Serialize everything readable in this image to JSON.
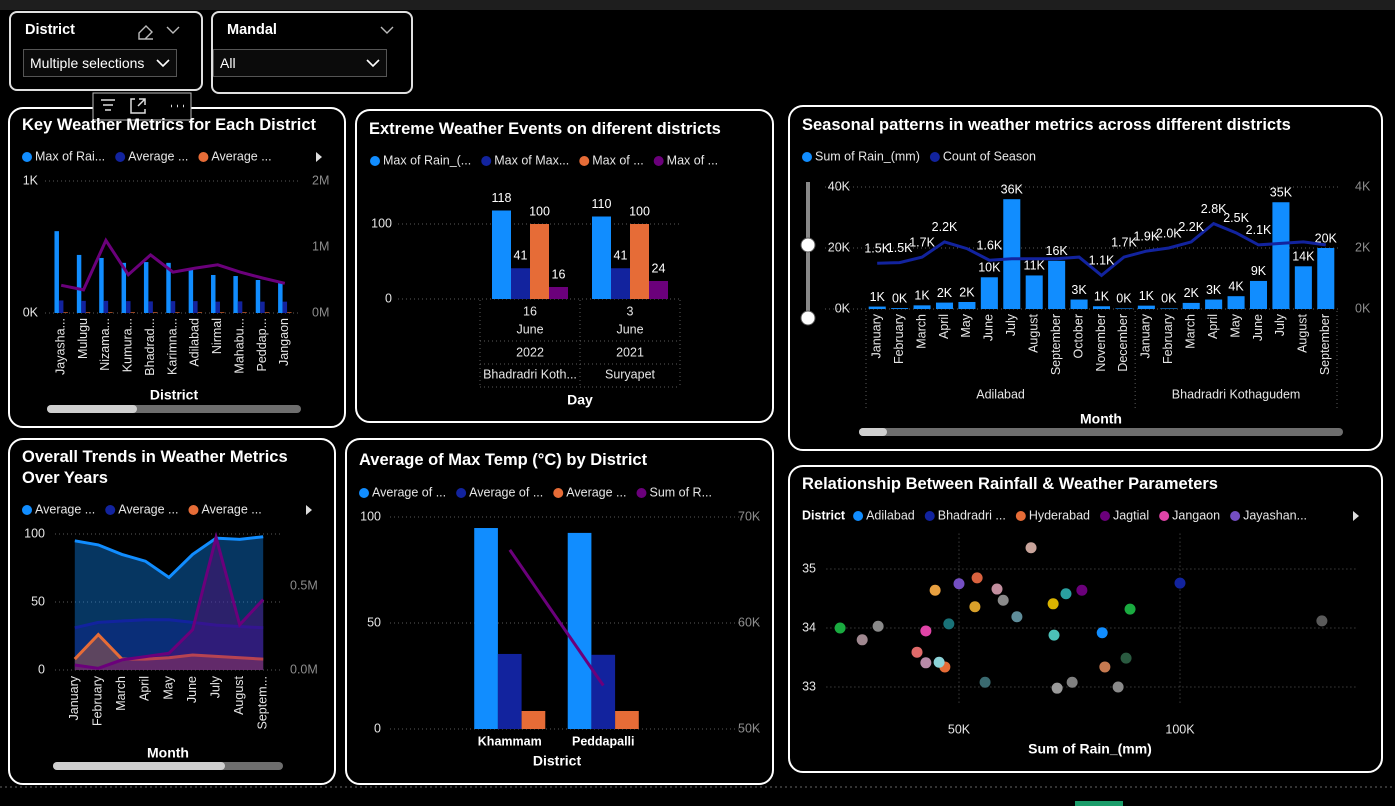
{
  "slicers": [
    {
      "title": "District",
      "selection": "Multiple selections"
    },
    {
      "title": "Mandal",
      "selection": "All"
    }
  ],
  "chart_data": [
    {
      "type": "combo",
      "title": "Key Weather Metrics for Each District",
      "x_label": "District",
      "categories": [
        "Jayasha...",
        "Mulugu",
        "Nizama...",
        "Kumura...",
        "Bhadrad...",
        "Karimna...",
        "Adilabad",
        "Nirmal",
        "Mahabu...",
        "Peddap...",
        "Jangaon"
      ],
      "series": [
        {
          "name": "Max of Rai...",
          "color": "#118dff",
          "values": [
            620,
            440,
            417,
            380,
            386,
            380,
            326,
            288,
            280,
            250,
            235
          ]
        },
        {
          "name": "Average ...",
          "color": "#12239e",
          "values": [
            95,
            92,
            92,
            90,
            88,
            90,
            90,
            86,
            88,
            86,
            86
          ]
        },
        {
          "name": "Average ...",
          "color": "#e66c37",
          "values": [
            5,
            5,
            5,
            5,
            5,
            5,
            5,
            5,
            5,
            5,
            5
          ]
        },
        {
          "color": "#6b007b",
          "axis": "y2",
          "values": [
            420000,
            350000,
            1100000,
            580000,
            880000,
            620000,
            680000,
            730000,
            620000,
            530000,
            450000
          ]
        }
      ],
      "ylim": [
        0,
        1000
      ],
      "yticks": [
        {
          "value": 0,
          "label": "0K"
        },
        {
          "value": 1000,
          "label": "1K"
        }
      ],
      "y2lim": [
        0,
        2000000
      ],
      "y2ticks": [
        {
          "value": 0,
          "label": "0M"
        },
        {
          "value": 1000000,
          "label": "1M"
        },
        {
          "value": 2000000,
          "label": "2M"
        }
      ],
      "grid": true
    },
    {
      "type": "bar",
      "title": "Extreme Weather Events on diferent districts",
      "x_label": "Day",
      "categories": [
        "16",
        "3"
      ],
      "months": [
        "June",
        "June"
      ],
      "years": [
        "2022",
        "2021"
      ],
      "districts": [
        "Bhadradri Koth...",
        "Suryapet"
      ],
      "series": [
        {
          "name": "Max of Rain_(...",
          "color": "#118dff",
          "values": [
            118,
            110
          ]
        },
        {
          "name": "Max of Max...",
          "color": "#12239e",
          "values": [
            41,
            41
          ]
        },
        {
          "name": "Max of ...",
          "color": "#e66c37",
          "values": [
            100,
            100
          ]
        },
        {
          "name": "Max of ...",
          "color": "#6b007b",
          "values": [
            16,
            24
          ]
        }
      ],
      "ylim": [
        0,
        140
      ],
      "yticks": [
        0,
        100
      ],
      "grid": true,
      "data_labels": true
    },
    {
      "type": "combo",
      "title": "Seasonal patterns in weather metrics across different districts",
      "x_label": "Month",
      "groups": [
        {
          "name": "Adilabad",
          "categories": [
            "January",
            "February",
            "March",
            "April",
            "May",
            "June",
            "July",
            "August",
            "September",
            "October",
            "November",
            "December"
          ]
        },
        {
          "name": "Bhadradri Kothagudem",
          "categories": [
            "January",
            "February",
            "March",
            "April",
            "May",
            "June",
            "July",
            "August",
            "September"
          ]
        }
      ],
      "series": [
        {
          "name": "Sum of Rain_(mm)",
          "color": "#118dff",
          "values": [
            800,
            300,
            1200,
            2100,
            2300,
            10400,
            36000,
            11000,
            15800,
            3100,
            900,
            200,
            1100,
            200,
            2000,
            3100,
            4200,
            9200,
            35000,
            14000,
            20000
          ],
          "value_labels": [
            "1K",
            "0K",
            "1K",
            "2K",
            "2K",
            "10K",
            "36K",
            "11K",
            "16K",
            "3K",
            "1K",
            "0K",
            "1K",
            "0K",
            "2K",
            "3K",
            "4K",
            "9K",
            "35K",
            "14K",
            "20K"
          ]
        },
        {
          "name": "Count of Season",
          "color": "#12239e",
          "axis": "y2",
          "values": [
            1500,
            1520,
            1700,
            2200,
            1980,
            1600,
            1650,
            1650,
            1650,
            1700,
            1100,
            1700,
            1900,
            2000,
            2200,
            2800,
            2500,
            2100,
            2150,
            2200,
            2100
          ],
          "value_labels": [
            "1.5K",
            "1.5K",
            "1.7K",
            "2.2K",
            null,
            "1.6K",
            null,
            null,
            null,
            null,
            "1.1K",
            "1.7K",
            "1.9K",
            "2.0K",
            "2.2K",
            "2.8K",
            "2.5K",
            "2.1K",
            null,
            null,
            null
          ]
        }
      ],
      "ylim": [
        0,
        40000
      ],
      "yticks": [
        {
          "value": 0,
          "label": "0K"
        },
        {
          "value": 20000,
          "label": "20K"
        },
        {
          "value": 40000,
          "label": "40K"
        }
      ],
      "y2lim": [
        0,
        4000
      ],
      "y2ticks": [
        {
          "value": 0,
          "label": "0K"
        },
        {
          "value": 2000,
          "label": "2K"
        },
        {
          "value": 4000,
          "label": "4K"
        }
      ],
      "grid": true
    },
    {
      "type": "area",
      "title": "Overall Trends in Weather Metrics Over Years",
      "x_label": "Month",
      "categories": [
        "January",
        "February",
        "March",
        "April",
        "May",
        "June",
        "July",
        "August",
        "Septem..."
      ],
      "series": [
        {
          "name": "Average ...",
          "color": "#118dff",
          "values": [
            95,
            92,
            85,
            80,
            68,
            85,
            97,
            96,
            98
          ]
        },
        {
          "name": "Average ...",
          "color": "#12239e",
          "values": [
            31,
            35,
            36,
            37,
            37,
            35,
            33,
            32,
            31
          ]
        },
        {
          "name": "Average ...",
          "color": "#e66c37",
          "values": [
            8,
            26,
            8,
            8,
            9,
            11,
            10,
            9,
            8
          ]
        },
        {
          "color": "#6b007b",
          "axis": "y2",
          "values": [
            30000,
            10000,
            60000,
            80000,
            100000,
            240000,
            790000,
            270000,
            420000
          ]
        }
      ],
      "ylim": [
        0,
        100
      ],
      "yticks": [
        0,
        50,
        100
      ],
      "y2lim": [
        0,
        810000
      ],
      "y2ticks": [
        {
          "value": 0,
          "label": "0.0M"
        },
        {
          "value": 500000,
          "label": "0.5M"
        }
      ],
      "grid": true
    },
    {
      "type": "combo",
      "title": "Average of Max Temp (°C) by District",
      "x_label": "District",
      "categories": [
        "Khammam",
        "Peddapalli"
      ],
      "series": [
        {
          "name": "Average of ...",
          "color": "#118dff",
          "values": [
            94.8,
            92.5
          ]
        },
        {
          "name": "Average of ...",
          "color": "#12239e",
          "values": [
            35.4,
            35
          ]
        },
        {
          "name": "Average ...",
          "color": "#e66c37",
          "values": [
            8.5,
            8.5
          ]
        },
        {
          "name": "Sum of R...",
          "color": "#6b007b",
          "axis": "y2",
          "values": [
            66900,
            54100
          ]
        }
      ],
      "ylim": [
        0,
        100
      ],
      "yticks": [
        0,
        50,
        100
      ],
      "y2lim": [
        50000,
        70000
      ],
      "y2ticks": [
        {
          "value": 50000,
          "label": "50K"
        },
        {
          "value": 60000,
          "label": "60K"
        },
        {
          "value": 70000,
          "label": "70K"
        }
      ],
      "grid": true
    },
    {
      "type": "scatter",
      "title": "Relationship Between Rainfall & Weather Parameters",
      "x_label": "Sum of Rain_(mm)",
      "legend_title": "District",
      "series": [
        {
          "name": "Adilabad",
          "color": "#118dff",
          "x": [
            82400
          ],
          "y": [
            33.92
          ]
        },
        {
          "name": "Bhadradri ...",
          "color": "#12239e",
          "x": [
            100000
          ],
          "y": [
            34.76
          ]
        },
        {
          "name": "Hyderabad",
          "color": "#e66c37",
          "x": [
            46800
          ],
          "y": [
            33.34
          ]
        },
        {
          "name": "Jagtial",
          "color": "#6b007b",
          "x": [
            77800
          ],
          "y": [
            34.64
          ]
        },
        {
          "name": "Jangaon",
          "color": "#e044a7",
          "x": [
            42500
          ],
          "y": [
            33.95
          ]
        },
        {
          "name": "Jayashan...",
          "color": "#744ec2",
          "x": [
            50000
          ],
          "y": [
            34.75
          ]
        },
        {
          "color": "#c8a49b",
          "x": [
            66300
          ],
          "y": [
            35.36
          ]
        },
        {
          "color": "#d9623f",
          "x": [
            54100
          ],
          "y": [
            34.85
          ]
        },
        {
          "color": "#e8a040",
          "x": [
            44600
          ],
          "y": [
            34.64
          ]
        },
        {
          "color": "#c38f9f",
          "x": [
            58600
          ],
          "y": [
            34.66
          ]
        },
        {
          "color": "#2aa0a0",
          "x": [
            74200
          ],
          "y": [
            34.58
          ]
        },
        {
          "color": "#8a8a8a",
          "x": [
            60000
          ],
          "y": [
            34.47
          ]
        },
        {
          "color": "#d9a02a",
          "x": [
            53600
          ],
          "y": [
            34.36
          ]
        },
        {
          "color": "#d9b300",
          "x": [
            71300
          ],
          "y": [
            34.41
          ]
        },
        {
          "color": "#1aab40",
          "x": [
            88700
          ],
          "y": [
            34.32
          ]
        },
        {
          "color": "#5f8d9a",
          "x": [
            63100
          ],
          "y": [
            34.19
          ]
        },
        {
          "color": "#197278",
          "x": [
            47700
          ],
          "y": [
            34.07
          ]
        },
        {
          "color": "#1aab40",
          "x": [
            23100
          ],
          "y": [
            34.0
          ]
        },
        {
          "color": "#8a8a8a",
          "x": [
            31700
          ],
          "y": [
            34.03
          ]
        },
        {
          "color": "#4cc0b8",
          "x": [
            71500
          ],
          "y": [
            33.88
          ]
        },
        {
          "color": "#a08890",
          "x": [
            28100
          ],
          "y": [
            33.8
          ]
        },
        {
          "color": "#e06a6a",
          "x": [
            40500
          ],
          "y": [
            33.59
          ]
        },
        {
          "color": "#b88aa8",
          "x": [
            42500
          ],
          "y": [
            33.41
          ]
        },
        {
          "color": "#8cd3d8",
          "x": [
            45500
          ],
          "y": [
            33.42
          ]
        },
        {
          "color": "#2a5a40",
          "x": [
            87800
          ],
          "y": [
            33.49
          ]
        },
        {
          "color": "#c77a50",
          "x": [
            83000
          ],
          "y": [
            33.34
          ]
        },
        {
          "color": "#3a6a70",
          "x": [
            55900
          ],
          "y": [
            33.08
          ]
        },
        {
          "color": "#808080",
          "x": [
            75600
          ],
          "y": [
            33.08
          ]
        },
        {
          "color": "#9a9a9a",
          "x": [
            72200
          ],
          "y": [
            32.98
          ]
        },
        {
          "color": "#8a8a8a",
          "x": [
            86000
          ],
          "y": [
            33.0
          ]
        },
        {
          "color": "#5a5a5a",
          "x": [
            132100
          ],
          "y": [
            34.12
          ]
        }
      ],
      "xlim": [
        20000,
        140000
      ],
      "xticks": [
        {
          "value": 50000,
          "label": "50K"
        },
        {
          "value": 100000,
          "label": "100K"
        }
      ],
      "ylim": [
        32.7,
        35.6
      ],
      "yticks": [
        33,
        34,
        35
      ],
      "grid": true
    }
  ]
}
